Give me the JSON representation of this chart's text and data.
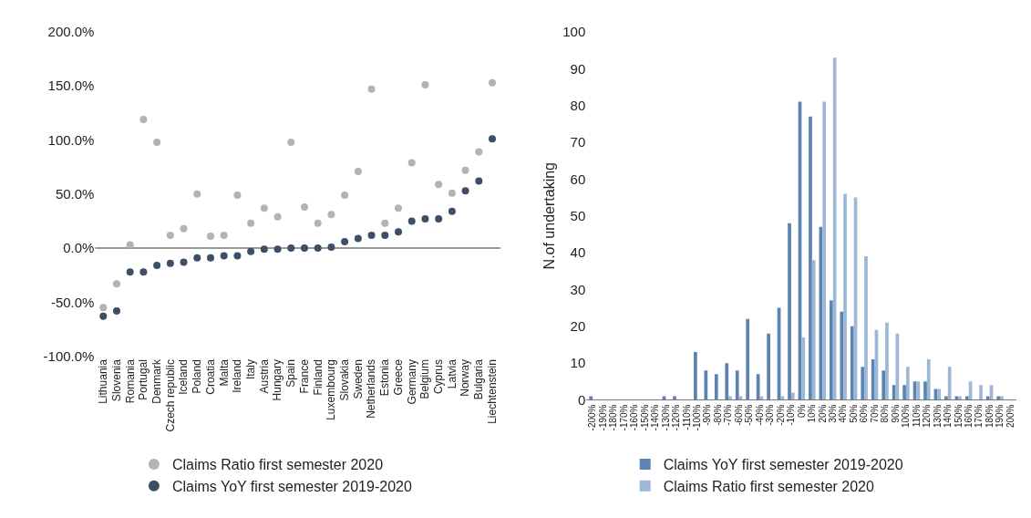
{
  "chart_data": [
    {
      "type": "scatter",
      "marker": "circle",
      "legend": "bottom",
      "grid": false,
      "categories": [
        "Lithuania",
        "Slovenia",
        "Romania",
        "Portugal",
        "Denmark",
        "Czech republic",
        "Iceland",
        "Poland",
        "Croatia",
        "Malta",
        "Ireland",
        "Italy",
        "Austria",
        "Hungary",
        "Spain",
        "France",
        "Finland",
        "Luxembourg",
        "Slovakia",
        "Sweden",
        "Netherlands",
        "Estonia",
        "Greece",
        "Germany",
        "Belgium",
        "Cyprus",
        "Latvia",
        "Norway",
        "Bulgaria",
        "Liechtenstein"
      ],
      "series": [
        {
          "name": "Claims Ratio first semester 2020",
          "color": "#b3b3b3",
          "values": [
            -55,
            -33,
            3,
            119,
            98,
            12,
            18,
            50,
            11,
            12,
            49,
            23,
            37,
            29,
            98,
            38,
            23,
            31,
            49,
            71,
            147,
            23,
            37,
            79,
            151,
            59,
            51,
            72,
            89,
            153
          ]
        },
        {
          "name": "Claims YoY first semester 2019-2020",
          "color": "#3d4e66",
          "values": [
            -63,
            -58,
            -22,
            -22,
            -16,
            -14,
            -13,
            -9,
            -9,
            -7,
            -7,
            -3,
            -1,
            -1,
            0,
            0,
            0,
            1,
            6,
            9,
            12,
            12,
            15,
            25,
            27,
            27,
            34,
            53,
            62,
            101
          ]
        }
      ],
      "ref_lines": [
        {
          "axis": "y",
          "value": 0,
          "color": "#777777"
        }
      ],
      "ylim": [
        -100,
        200
      ],
      "yticks": [
        {
          "value": -100,
          "label": "-100.0%"
        },
        {
          "value": -50,
          "label": "-50.0%"
        },
        {
          "value": 0,
          "label": "0.0%"
        },
        {
          "value": 50,
          "label": "50.0%"
        },
        {
          "value": 100,
          "label": "100.0%"
        },
        {
          "value": 150,
          "label": "150.0%"
        },
        {
          "value": 200,
          "label": "200.0%"
        }
      ]
    },
    {
      "type": "bar",
      "legend": "bottom",
      "grid": false,
      "ylabel": "N.of undertaking",
      "categories": [
        "-200%",
        "-190%",
        "-180%",
        "-170%",
        "-160%",
        "-150%",
        "-140%",
        "-130%",
        "-120%",
        "-110%",
        "-100%",
        "-90%",
        "-80%",
        "-70%",
        "-60%",
        "-50%",
        "-40%",
        "-30%",
        "-20%",
        "-10%",
        "0%",
        "10%",
        "20%",
        "30%",
        "40%",
        "50%",
        "60%",
        "70%",
        "80%",
        "90%",
        "100%",
        "110%",
        "120%",
        "130%",
        "140%",
        "150%",
        "160%",
        "170%",
        "180%",
        "190%",
        "200%"
      ],
      "series": [
        {
          "name": "Claims YoY first semester 2019-2020",
          "color": "#5b84b0",
          "values": [
            1,
            0,
            0,
            0,
            0,
            0,
            0,
            1,
            1,
            0,
            13,
            8,
            7,
            10,
            8,
            22,
            7,
            18,
            25,
            48,
            81,
            77,
            47,
            27,
            24,
            20,
            9,
            11,
            8,
            4,
            4,
            5,
            5,
            3,
            1,
            1,
            1,
            0,
            1,
            1,
            0
          ]
        },
        {
          "name": "Claims Ratio first semester 2020",
          "color": "#9db8d6",
          "values": [
            0,
            0,
            0,
            0,
            0,
            0,
            0,
            0,
            0,
            0,
            0,
            0,
            0,
            1,
            1,
            0,
            1,
            0,
            1,
            2,
            17,
            38,
            81,
            93,
            56,
            55,
            39,
            19,
            21,
            18,
            9,
            5,
            11,
            3,
            9,
            1,
            5,
            4,
            4,
            1,
            0
          ]
        }
      ],
      "ylim": [
        0,
        100
      ],
      "yticks": [
        0,
        10,
        20,
        30,
        40,
        50,
        60,
        70,
        80,
        90,
        100
      ]
    }
  ]
}
